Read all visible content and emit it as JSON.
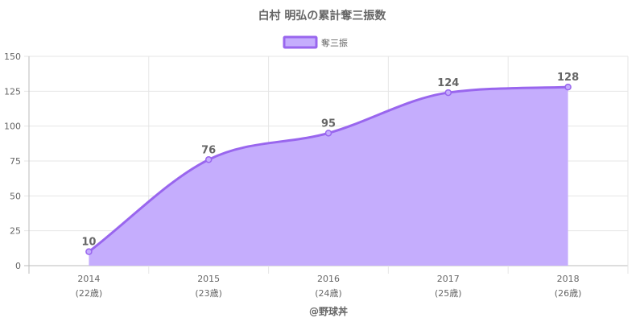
{
  "chart_data": {
    "type": "area",
    "title": "白村 明弘の累計奪三振数",
    "legend_position": "top",
    "grid": true,
    "categories": [
      "2014",
      "2015",
      "2016",
      "2017",
      "2018"
    ],
    "category_sublabels": [
      "(22歳)",
      "(23歳)",
      "(24歳)",
      "(25歳)",
      "(26歳)"
    ],
    "series": [
      {
        "name": "奪三振",
        "values": [
          10,
          76,
          95,
          124,
          128
        ]
      }
    ],
    "ylim": [
      0,
      150
    ],
    "yticks": [
      0,
      25,
      50,
      75,
      100,
      125,
      150
    ],
    "footer": "@野球丼",
    "colors": {
      "fill": "#c5adfd",
      "line": "#9966ee",
      "grid": "#e6e6e6",
      "axis": "#bbbbbb"
    }
  }
}
